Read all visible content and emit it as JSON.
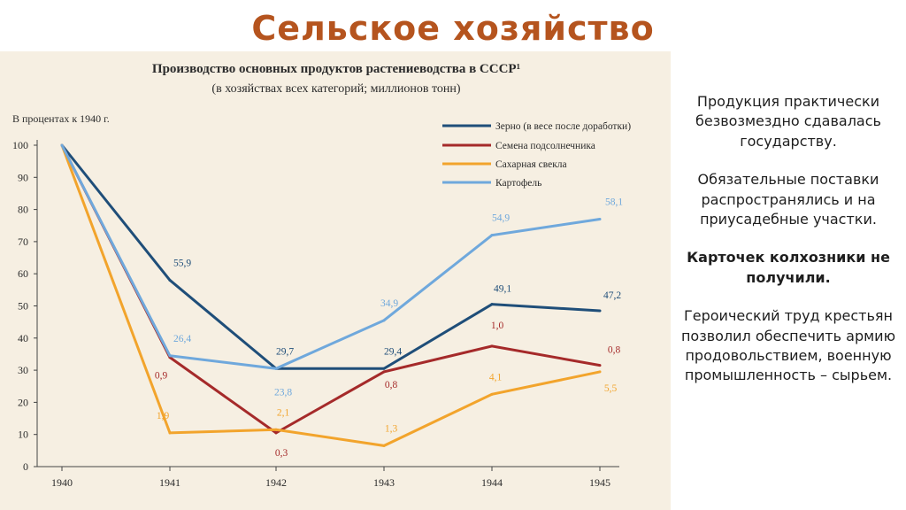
{
  "slide": {
    "title": "Сельское хозяйство",
    "paragraphs": [
      "Продукция практически безвозмездно сдавалась государству.",
      "Обязательные поставки распространялись и на приусадебные участки.",
      "Карточек колхозники не получили.",
      "Героический труд крестьян позволил обеспечить армию продовольствием, военную промышленность – сырьем."
    ]
  },
  "chart_data": {
    "type": "line",
    "title": "Производство основных продуктов растениеводства в СССР¹",
    "subtitle": "(в хозяйствах всех категорий; миллионов тонн)",
    "ylabel": "В процентах к 1940 г.",
    "x": [
      "1940",
      "1941",
      "1942",
      "1943",
      "1944",
      "1945"
    ],
    "yticks": [
      0,
      10,
      20,
      30,
      40,
      50,
      60,
      70,
      80,
      90,
      100
    ],
    "ylim": [
      0,
      100
    ],
    "grid": false,
    "legend_position": "top-right",
    "series": [
      {
        "name": "Зерно (в весе после доработки)",
        "color": "#1f4e79",
        "values": [
          100,
          58,
          30.5,
          30.5,
          50.5,
          48.5
        ],
        "labels": [
          "",
          "55,9",
          "29,7",
          "29,4",
          "49,1",
          "47,2"
        ]
      },
      {
        "name": "Семена подсолнечника",
        "color": "#a52a2a",
        "values": [
          100,
          34,
          10.5,
          29.5,
          37.5,
          31.5
        ],
        "labels": [
          "",
          "0,9",
          "0,3",
          "0,8",
          "1,0",
          "0,8"
        ]
      },
      {
        "name": "Сахарная свекла",
        "color": "#f2a42c",
        "values": [
          100,
          10.5,
          11.5,
          6.5,
          22.5,
          29.5
        ],
        "labels": [
          "",
          "1,9",
          "2,1",
          "1,3",
          "4,1",
          "5,5"
        ]
      },
      {
        "name": "Картофель",
        "color": "#6fa8dc",
        "values": [
          100,
          34.5,
          30.5,
          45.5,
          72,
          77
        ],
        "labels": [
          "",
          "26,4",
          "23,8",
          "34,9",
          "54,9",
          "58,1"
        ]
      }
    ]
  }
}
